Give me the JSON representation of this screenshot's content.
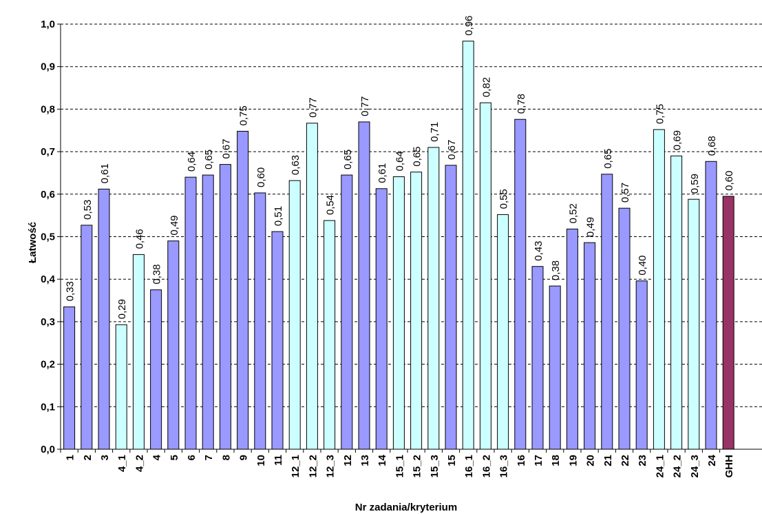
{
  "chart_data": {
    "type": "bar",
    "title": "",
    "xlabel": "Nr zadania/kryterium",
    "ylabel": "Łatwość",
    "ylim": [
      0,
      1
    ],
    "yticks": [
      "0,0",
      "0,1",
      "0,2",
      "0,3",
      "0,4",
      "0,5",
      "0,6",
      "0,7",
      "0,8",
      "0,9",
      "1,0"
    ],
    "grid": true,
    "legend": "none",
    "colors": {
      "task": "#9999ff",
      "criterion": "#ccffff",
      "total": "#993366",
      "border": "#000000",
      "grid": "#000000"
    },
    "categories": [
      "1",
      "2",
      "3",
      "4_1",
      "4_2",
      "4",
      "5",
      "6",
      "7",
      "8",
      "9",
      "10",
      "11",
      "12_1",
      "12_2",
      "12_3",
      "12",
      "13",
      "14",
      "15_1",
      "15_2",
      "15_3",
      "15",
      "16_1",
      "16_2",
      "16_3",
      "16",
      "17",
      "18",
      "19",
      "20",
      "21",
      "22",
      "23",
      "24_1",
      "24_2",
      "24_3",
      "24",
      "GHH"
    ],
    "values": [
      0.335,
      0.527,
      0.612,
      0.293,
      0.458,
      0.375,
      0.49,
      0.64,
      0.645,
      0.67,
      0.748,
      0.603,
      0.512,
      0.632,
      0.767,
      0.538,
      0.645,
      0.77,
      0.613,
      0.641,
      0.652,
      0.71,
      0.668,
      0.96,
      0.815,
      0.552,
      0.776,
      0.43,
      0.384,
      0.518,
      0.486,
      0.647,
      0.567,
      0.396,
      0.752,
      0.69,
      0.588,
      0.677,
      0.595
    ],
    "value_labels": [
      "0,33",
      "0,53",
      "0,61",
      "0,29",
      "0,46",
      "0,38",
      "0,49",
      "0,64",
      "0,65",
      "0,67",
      "0,75",
      "0,60",
      "0,51",
      "0,63",
      "0,77",
      "0,54",
      "0,65",
      "0,77",
      "0,61",
      "0,64",
      "0,65",
      "0,71",
      "0,67",
      "0,96",
      "0,82",
      "0,55",
      "0,78",
      "0,43",
      "0,38",
      "0,52",
      "0,49",
      "0,65",
      "0,57",
      "0,40",
      "0,75",
      "0,69",
      "0,59",
      "0,68",
      "0,60"
    ],
    "bar_kind": [
      "task",
      "task",
      "task",
      "criterion",
      "criterion",
      "task",
      "task",
      "task",
      "task",
      "task",
      "task",
      "task",
      "task",
      "criterion",
      "criterion",
      "criterion",
      "task",
      "task",
      "task",
      "criterion",
      "criterion",
      "criterion",
      "task",
      "criterion",
      "criterion",
      "criterion",
      "task",
      "task",
      "task",
      "task",
      "task",
      "task",
      "task",
      "task",
      "criterion",
      "criterion",
      "criterion",
      "task",
      "total"
    ]
  }
}
